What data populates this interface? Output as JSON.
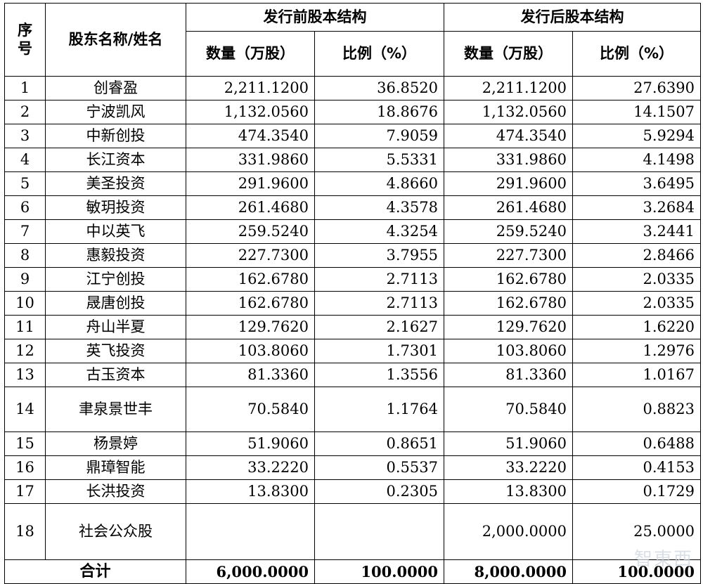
{
  "headers": {
    "seq": "序号",
    "name": "股东名称/姓名",
    "pre": "发行前股本结构",
    "post": "发行后股本结构",
    "qty": "数量（万股）",
    "ratio": "比例（%）"
  },
  "rows": [
    {
      "seq": "1",
      "name": "创睿盈",
      "pre_qty": "2,211.1200",
      "pre_ratio": "36.8520",
      "post_qty": "2,211.1200",
      "post_ratio": "27.6390"
    },
    {
      "seq": "2",
      "name": "宁波凯风",
      "pre_qty": "1,132.0560",
      "pre_ratio": "18.8676",
      "post_qty": "1,132.0560",
      "post_ratio": "14.1507"
    },
    {
      "seq": "3",
      "name": "中新创投",
      "pre_qty": "474.3540",
      "pre_ratio": "7.9059",
      "post_qty": "474.3540",
      "post_ratio": "5.9294"
    },
    {
      "seq": "4",
      "name": "长江资本",
      "pre_qty": "331.9860",
      "pre_ratio": "5.5331",
      "post_qty": "331.9860",
      "post_ratio": "4.1498"
    },
    {
      "seq": "5",
      "name": "美圣投资",
      "pre_qty": "291.9600",
      "pre_ratio": "4.8660",
      "post_qty": "291.9600",
      "post_ratio": "3.6495"
    },
    {
      "seq": "6",
      "name": "敏玥投资",
      "pre_qty": "261.4680",
      "pre_ratio": "4.3578",
      "post_qty": "261.4680",
      "post_ratio": "3.2684"
    },
    {
      "seq": "7",
      "name": "中以英飞",
      "pre_qty": "259.5240",
      "pre_ratio": "4.3254",
      "post_qty": "259.5240",
      "post_ratio": "3.2441"
    },
    {
      "seq": "8",
      "name": "惠毅投资",
      "pre_qty": "227.7300",
      "pre_ratio": "3.7955",
      "post_qty": "227.7300",
      "post_ratio": "2.8466"
    },
    {
      "seq": "9",
      "name": "江宁创投",
      "pre_qty": "162.6780",
      "pre_ratio": "2.7113",
      "post_qty": "162.6780",
      "post_ratio": "2.0335"
    },
    {
      "seq": "10",
      "name": "晟唐创投",
      "pre_qty": "162.6780",
      "pre_ratio": "2.7113",
      "post_qty": "162.6780",
      "post_ratio": "2.0335"
    },
    {
      "seq": "11",
      "name": "舟山半夏",
      "pre_qty": "129.7620",
      "pre_ratio": "2.1627",
      "post_qty": "129.7620",
      "post_ratio": "1.6220"
    },
    {
      "seq": "12",
      "name": "英飞投资",
      "pre_qty": "103.8060",
      "pre_ratio": "1.7301",
      "post_qty": "103.8060",
      "post_ratio": "1.2976"
    },
    {
      "seq": "13",
      "name": "古玉资本",
      "pre_qty": "81.3360",
      "pre_ratio": "1.3556",
      "post_qty": "81.3360",
      "post_ratio": "1.0167"
    },
    {
      "seq": "14",
      "name": "聿泉景世丰",
      "pre_qty": "70.5840",
      "pre_ratio": "1.1764",
      "post_qty": "70.5840",
      "post_ratio": "0.8823"
    },
    {
      "seq": "15",
      "name": "杨景婷",
      "pre_qty": "51.9060",
      "pre_ratio": "0.8651",
      "post_qty": "51.9060",
      "post_ratio": "0.6488"
    },
    {
      "seq": "16",
      "name": "鼎璋智能",
      "pre_qty": "33.2220",
      "pre_ratio": "0.5537",
      "post_qty": "33.2220",
      "post_ratio": "0.4153"
    },
    {
      "seq": "17",
      "name": "长洪投资",
      "pre_qty": "13.8300",
      "pre_ratio": "0.2305",
      "post_qty": "13.8300",
      "post_ratio": "0.1729"
    },
    {
      "seq": "18",
      "name": "社会公众股",
      "pre_qty": "",
      "pre_ratio": "",
      "post_qty": "2,000.0000",
      "post_ratio": "25.0000"
    }
  ],
  "total": {
    "label": "合计",
    "pre_qty": "6,000.0000",
    "pre_ratio": "100.0000",
    "post_qty": "8,000.0000",
    "post_ratio": "100.0000"
  },
  "watermark": "智東西"
}
